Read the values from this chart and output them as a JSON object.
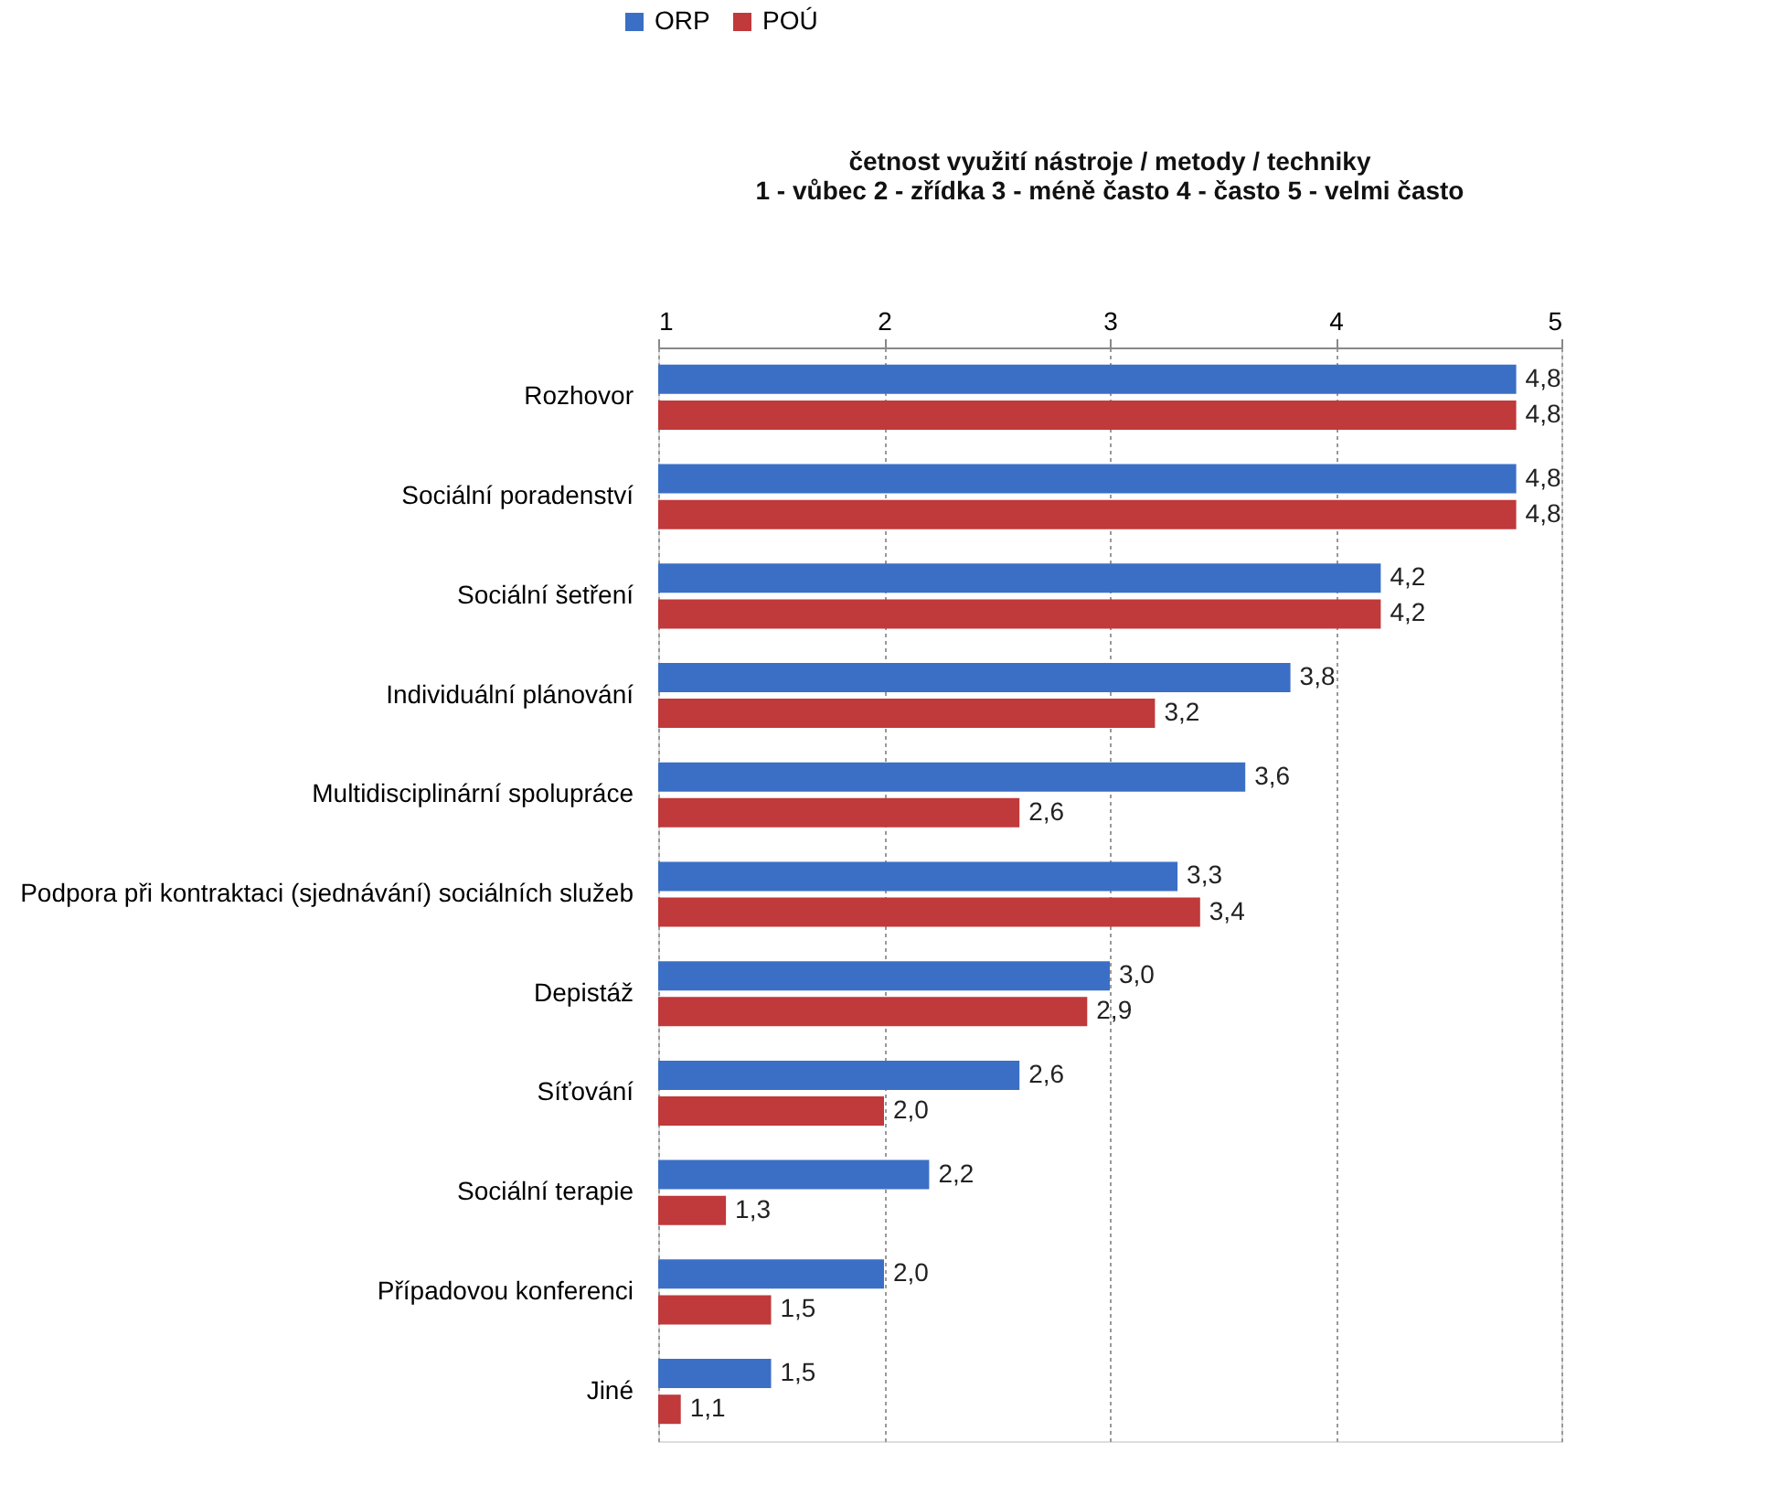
{
  "chart_data": {
    "type": "bar",
    "orientation": "horizontal",
    "title": [
      "četnost využití nástroje / metody / techniky",
      "1 - vůbec 2 - zřídka 3 - méně často 4 - často 5 - velmi často"
    ],
    "categories": [
      "Rozhovor",
      "Sociální poradenství",
      "Sociální šetření",
      "Individuální plánování",
      "Multidisciplinární spolupráce",
      "Podpora při kontraktaci (sjednávání) sociálních služeb",
      "Depistáž",
      "Síťování",
      "Sociální terapie",
      "Případovou konferenci",
      "Jiné"
    ],
    "series": [
      {
        "name": "ORP",
        "color": "#3b6fc6",
        "values": [
          4.8,
          4.8,
          4.2,
          3.8,
          3.6,
          3.3,
          3.0,
          2.6,
          2.2,
          2.0,
          1.5
        ],
        "value_labels": [
          "4,8",
          "4,8",
          "4,2",
          "3,8",
          "3,6",
          "3,3",
          "3,0",
          "2,6",
          "2,2",
          "2,0",
          "1,5"
        ]
      },
      {
        "name": "POÚ",
        "color": "#c0393b",
        "values": [
          4.8,
          4.8,
          4.2,
          3.2,
          2.6,
          3.4,
          2.9,
          2.0,
          1.3,
          1.5,
          1.1
        ],
        "value_labels": [
          "4,8",
          "4,8",
          "4,2",
          "3,2",
          "2,6",
          "3,4",
          "2,9",
          "2,0",
          "1,3",
          "1,5",
          "1,1"
        ]
      }
    ],
    "xlim": [
      1,
      5
    ],
    "xticks": [
      1,
      2,
      3,
      4,
      5
    ],
    "grid": "x",
    "legend": "top"
  }
}
